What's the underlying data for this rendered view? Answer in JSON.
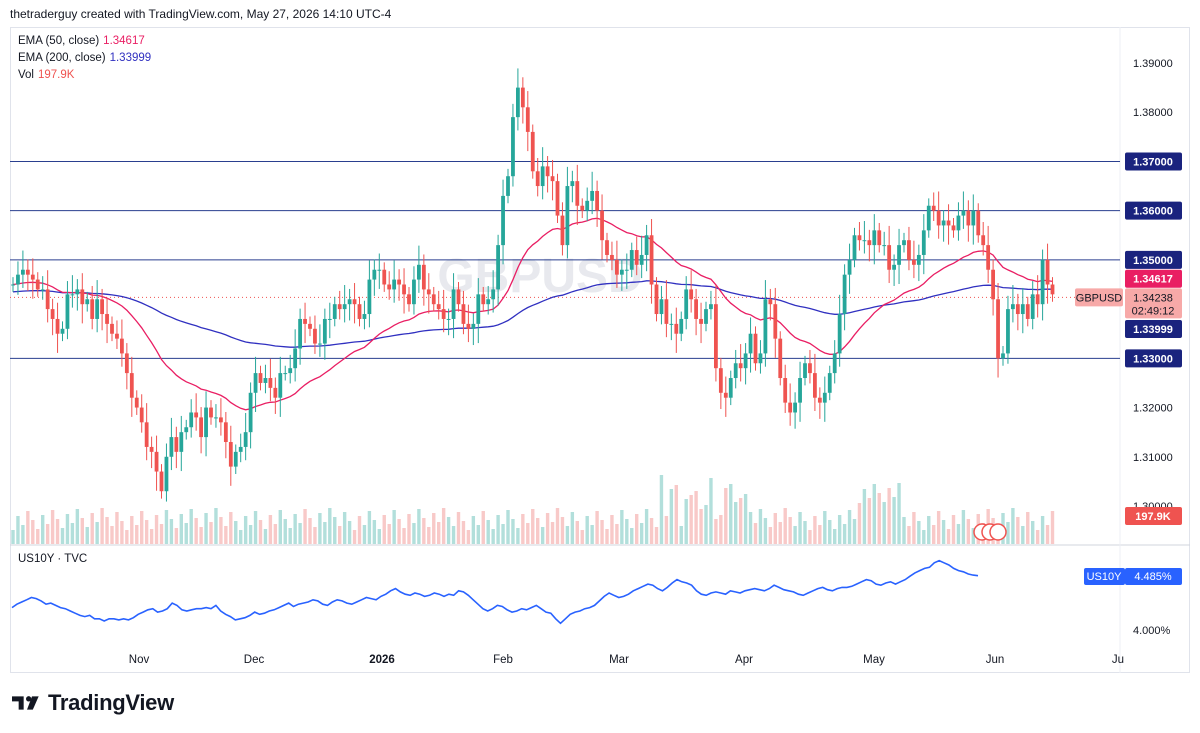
{
  "header": {
    "attribution": "thetraderguy created with TradingView.com, May 27, 2026 14:10 UTC-4"
  },
  "watermark": "GBPUSD",
  "legend": [
    {
      "label": "EMA (50, close)",
      "value": "1.34617",
      "color": "#e91e63"
    },
    {
      "label": "EMA (200, close)",
      "value": "1.33999",
      "color": "#3030c0"
    },
    {
      "label": "Vol",
      "value": "197.9K",
      "color": "#ef5350"
    }
  ],
  "branding": {
    "name": "TradingView"
  },
  "colors": {
    "up": "#26a69a",
    "down": "#ef5350",
    "ema50": "#e91e63",
    "ema200": "#3030c0",
    "hline": "#2a3f8f",
    "us10y": "#2962ff"
  },
  "chart_data": [
    {
      "type": "candlestick",
      "symbol": "GBPUSD",
      "x_tick_labels": [
        "Nov",
        "Dec",
        "2026",
        "Feb",
        "Mar",
        "Apr",
        "May",
        "Jun",
        "Ju"
      ],
      "y_tick_labels": [
        "1.39000",
        "1.38000",
        "1.36000",
        "1.35000",
        "1.34617",
        "1.34238",
        "1.33999",
        "1.33000",
        "1.32000",
        "1.31000",
        "1.30000"
      ],
      "ylim": [
        1.2985,
        1.3965
      ],
      "horizontal_lines": [
        {
          "label": "1.37000",
          "y": 1.37
        },
        {
          "label": "1.36000",
          "y": 1.36
        },
        {
          "label": "1.35000",
          "y": 1.35
        },
        {
          "label": "1.33000",
          "y": 1.33
        }
      ],
      "price_tags": [
        {
          "label": "1.34617",
          "y": 1.34617,
          "color": "#e91e63"
        },
        {
          "label": "GBPUSD",
          "price": "1.34238",
          "countdown": "02:49:12",
          "y": 1.34238,
          "color": "#ef5350"
        },
        {
          "label": "1.33999",
          "y": 1.33999,
          "color": "#3030c0"
        },
        {
          "label": "197.9K",
          "y": 1.2995,
          "color": "#ef5350"
        }
      ],
      "last_price": 1.34238,
      "close": [
        1.345,
        1.347,
        1.348,
        1.347,
        1.346,
        1.344,
        1.344,
        1.34,
        1.338,
        1.335,
        1.336,
        1.343,
        1.343,
        1.344,
        1.341,
        1.342,
        1.338,
        1.342,
        1.339,
        1.337,
        1.335,
        1.334,
        1.331,
        1.327,
        1.322,
        1.32,
        1.317,
        1.312,
        1.311,
        1.307,
        1.303,
        1.31,
        1.314,
        1.311,
        1.315,
        1.316,
        1.319,
        1.318,
        1.314,
        1.32,
        1.318,
        1.318,
        1.317,
        1.313,
        1.308,
        1.311,
        1.312,
        1.315,
        1.323,
        1.327,
        1.325,
        1.326,
        1.324,
        1.322,
        1.327,
        1.327,
        1.328,
        1.332,
        1.338,
        1.337,
        1.336,
        1.333,
        1.333,
        1.338,
        1.338,
        1.341,
        1.34,
        1.341,
        1.342,
        1.341,
        1.338,
        1.339,
        1.346,
        1.348,
        1.348,
        1.345,
        1.344,
        1.346,
        1.345,
        1.343,
        1.341,
        1.346,
        1.349,
        1.344,
        1.343,
        1.341,
        1.34,
        1.338,
        1.338,
        1.344,
        1.341,
        1.337,
        1.336,
        1.337,
        1.343,
        1.341,
        1.342,
        1.344,
        1.353,
        1.363,
        1.367,
        1.379,
        1.385,
        1.381,
        1.376,
        1.368,
        1.365,
        1.369,
        1.367,
        1.366,
        1.359,
        1.353,
        1.365,
        1.366,
        1.361,
        1.36,
        1.362,
        1.364,
        1.36,
        1.354,
        1.351,
        1.35,
        1.347,
        1.348,
        1.348,
        1.352,
        1.349,
        1.351,
        1.355,
        1.345,
        1.339,
        1.342,
        1.337,
        1.337,
        1.335,
        1.338,
        1.344,
        1.342,
        1.338,
        1.337,
        1.34,
        1.341,
        1.328,
        1.323,
        1.322,
        1.326,
        1.329,
        1.328,
        1.331,
        1.335,
        1.329,
        1.331,
        1.342,
        1.341,
        1.334,
        1.326,
        1.321,
        1.319,
        1.321,
        1.326,
        1.329,
        1.327,
        1.322,
        1.321,
        1.323,
        1.327,
        1.331,
        1.339,
        1.347,
        1.35,
        1.355,
        1.354,
        1.354,
        1.353,
        1.356,
        1.353,
        1.353,
        1.348,
        1.349,
        1.353,
        1.354,
        1.35,
        1.349,
        1.351,
        1.356,
        1.361,
        1.36,
        1.357,
        1.358,
        1.357,
        1.356,
        1.359,
        1.36,
        1.357,
        1.36,
        1.355,
        1.353,
        1.348,
        1.342,
        1.33,
        1.331,
        1.34,
        1.341,
        1.339,
        1.341,
        1.338,
        1.343,
        1.341,
        1.35,
        1.345,
        1.343
      ],
      "ema50": {
        "value": 1.34617,
        "color": "#e91e63"
      },
      "ema200": {
        "value": 1.33999,
        "color": "#3030c0"
      },
      "volume_last": "197.9K"
    },
    {
      "type": "line",
      "title": "US10Y · TVC",
      "series_label": "US10Y",
      "last_value": "4.485%",
      "y_tick_labels": [
        "4.000%"
      ],
      "values": [
        4.2,
        4.23,
        4.25,
        4.27,
        4.29,
        4.28,
        4.26,
        4.23,
        4.24,
        4.22,
        4.2,
        4.19,
        4.17,
        4.15,
        4.13,
        4.12,
        4.13,
        4.1,
        4.1,
        4.08,
        4.1,
        4.1,
        4.09,
        4.1,
        4.09,
        4.11,
        4.14,
        4.16,
        4.18,
        4.19,
        4.16,
        4.17,
        4.19,
        4.24,
        4.22,
        4.18,
        4.17,
        4.18,
        4.19,
        4.19,
        4.2,
        4.19,
        4.22,
        4.17,
        4.14,
        4.12,
        4.09,
        4.1,
        4.11,
        4.13,
        4.16,
        4.14,
        4.15,
        4.17,
        4.18,
        4.2,
        4.22,
        4.24,
        4.21,
        4.23,
        4.24,
        4.25,
        4.27,
        4.26,
        4.23,
        4.22,
        4.25,
        4.27,
        4.26,
        4.24,
        4.23,
        4.25,
        4.27,
        4.29,
        4.28,
        4.27,
        4.3,
        4.32,
        4.35,
        4.37,
        4.34,
        4.32,
        4.31,
        4.33,
        4.32,
        4.3,
        4.31,
        4.33,
        4.32,
        4.3,
        4.32,
        4.31,
        4.35,
        4.34,
        4.31,
        4.27,
        4.23,
        4.19,
        4.17,
        4.19,
        4.22,
        4.21,
        4.18,
        4.16,
        4.17,
        4.19,
        4.18,
        4.2,
        4.22,
        4.19,
        4.16,
        4.15,
        4.1,
        4.06,
        4.1,
        4.14,
        4.16,
        4.17,
        4.19,
        4.2,
        4.22,
        4.26,
        4.3,
        4.33,
        4.31,
        4.29,
        4.3,
        4.32,
        4.35,
        4.37,
        4.39,
        4.41,
        4.4,
        4.37,
        4.35,
        4.38,
        4.42,
        4.45,
        4.43,
        4.42,
        4.4,
        4.35,
        4.32,
        4.31,
        4.33,
        4.34,
        4.33,
        4.32,
        4.35,
        4.34,
        4.33,
        4.35,
        4.36,
        4.37,
        4.36,
        4.35,
        4.37,
        4.4,
        4.38,
        4.36,
        4.35,
        4.34,
        4.32,
        4.31,
        4.33,
        4.35,
        4.37,
        4.38,
        4.36,
        4.35,
        4.37,
        4.38,
        4.38,
        4.39,
        4.41,
        4.43,
        4.45,
        4.44,
        4.41,
        4.4,
        4.42,
        4.43,
        4.41,
        4.43,
        4.45,
        4.48,
        4.51,
        4.53,
        4.55,
        4.56,
        4.6,
        4.62,
        4.6,
        4.58,
        4.55,
        4.53,
        4.52,
        4.5,
        4.49,
        4.485
      ],
      "ylim": [
        3.95,
        4.65
      ]
    }
  ]
}
